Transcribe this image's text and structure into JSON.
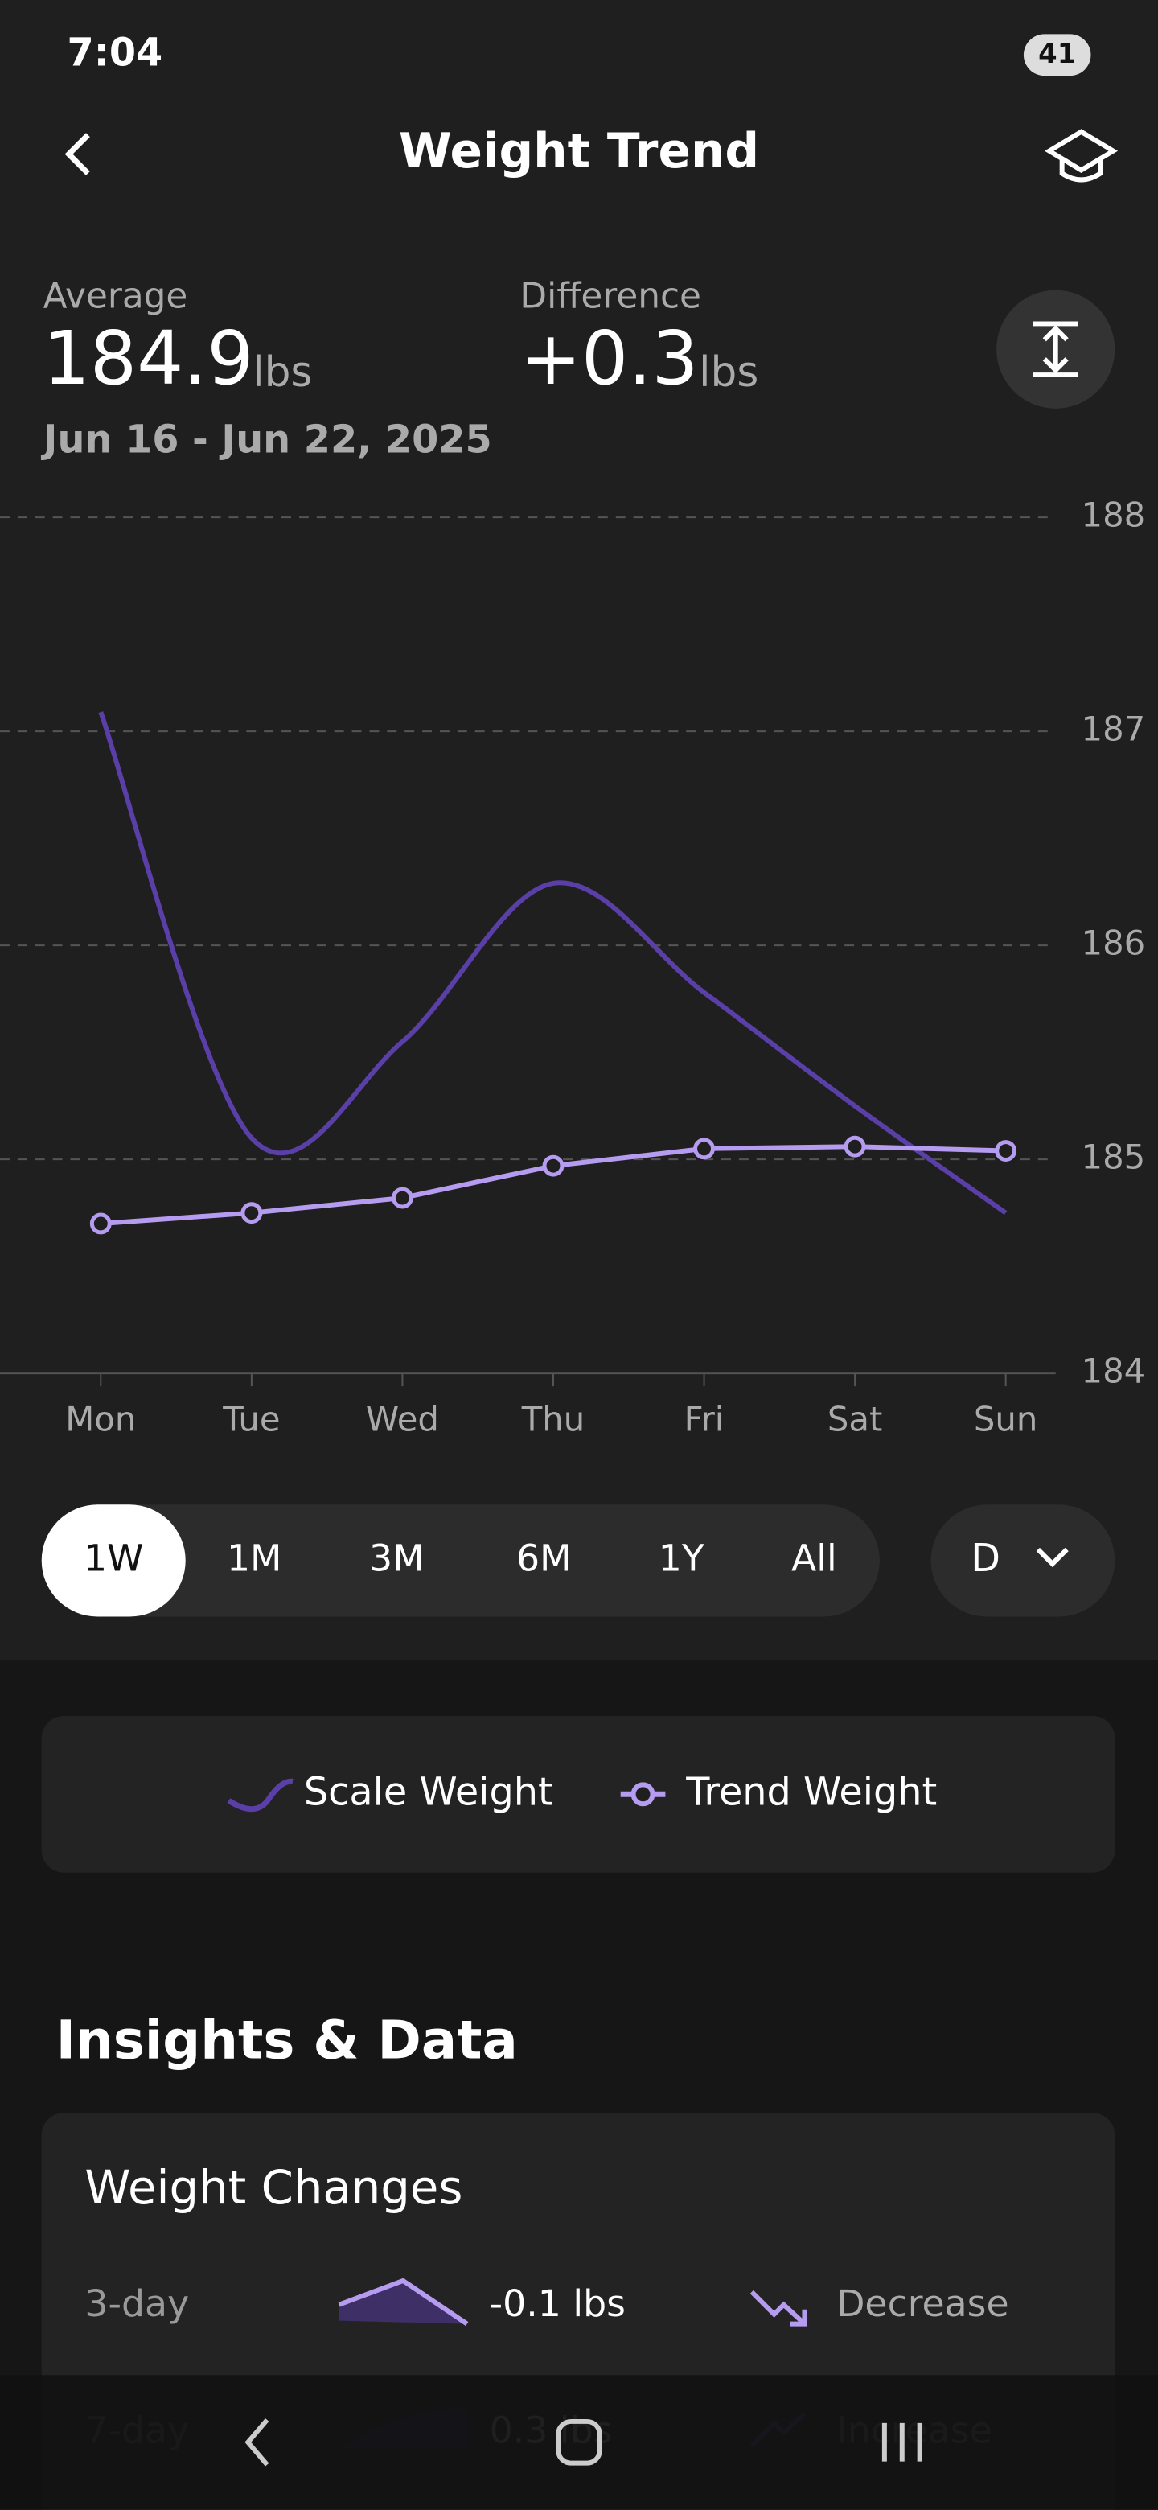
{
  "status": {
    "time": "7:04",
    "battery": "41"
  },
  "header": {
    "title": "Weight Trend"
  },
  "summary": {
    "average_label": "Average",
    "average": "184.9",
    "average_unit": "lbs",
    "difference_label": "Difference",
    "difference": "+0.3",
    "difference_unit": "lbs",
    "date_range": "Jun 16 - Jun 22, 2025"
  },
  "chart_data": {
    "type": "line",
    "categories": [
      "Mon",
      "Tue",
      "Wed",
      "Thu",
      "Fri",
      "Sat",
      "Sun"
    ],
    "series": [
      {
        "name": "Scale Weight",
        "color": "#5b3fa8",
        "values": [
          187.09,
          185.1,
          185.55,
          186.29,
          185.78,
          185.25,
          184.75
        ]
      },
      {
        "name": "Trend Weight",
        "color": "#b69cf0",
        "values": [
          184.7,
          184.75,
          184.82,
          184.97,
          185.05,
          185.06,
          185.04
        ]
      }
    ],
    "ylim": [
      184,
      188
    ],
    "yticks": [
      184,
      185,
      186,
      187,
      188
    ],
    "grid": true
  },
  "ranges": [
    "1W",
    "1M",
    "3M",
    "6M",
    "1Y",
    "All"
  ],
  "period": "D",
  "insights": {
    "title": "Insights & Data",
    "card_title": "Weight Changes",
    "rows": [
      [
        "3-day",
        "-0.1 lbs",
        "Decrease"
      ],
      [
        "7-day",
        "0.3 lbs",
        "Increase"
      ]
    ]
  }
}
